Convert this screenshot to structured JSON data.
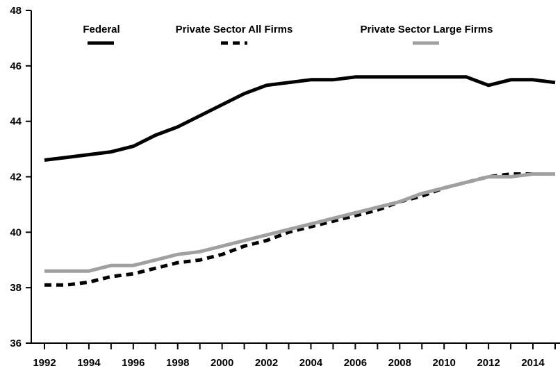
{
  "chart_data": {
    "type": "line",
    "title": "",
    "xlabel": "",
    "ylabel": "",
    "xlim": [
      1992,
      2015
    ],
    "ylim": [
      36,
      48
    ],
    "yticks": [
      36,
      38,
      40,
      42,
      44,
      46,
      48
    ],
    "xtick_labels": [
      "1992",
      "1994",
      "1996",
      "1998",
      "2000",
      "2002",
      "2004",
      "2006",
      "2008",
      "2010",
      "2012",
      "2014"
    ],
    "grid": false,
    "legend_placement": "top",
    "x": [
      1992,
      1993,
      1994,
      1995,
      1996,
      1997,
      1998,
      1999,
      2000,
      2001,
      2002,
      2003,
      2004,
      2005,
      2006,
      2007,
      2008,
      2009,
      2010,
      2011,
      2012,
      2013,
      2014,
      2015
    ],
    "series": [
      {
        "name": "Federal",
        "color": "#000000",
        "style": "solid",
        "values": [
          42.6,
          42.7,
          42.8,
          42.9,
          43.1,
          43.5,
          43.8,
          44.2,
          44.6,
          45.0,
          45.3,
          45.4,
          45.5,
          45.5,
          45.6,
          45.6,
          45.6,
          45.6,
          45.6,
          45.6,
          45.3,
          45.5,
          45.5,
          45.4
        ]
      },
      {
        "name": "Private Sector All Firms",
        "color": "#000000",
        "style": "dashed",
        "values": [
          38.1,
          38.1,
          38.2,
          38.4,
          38.5,
          38.7,
          38.9,
          39.0,
          39.2,
          39.5,
          39.7,
          40.0,
          40.2,
          40.4,
          40.6,
          40.8,
          41.1,
          41.3,
          41.6,
          41.8,
          42.0,
          42.1,
          42.1,
          42.1
        ]
      },
      {
        "name": "Private Sector Large Firms",
        "color": "#a0a0a0",
        "style": "solid",
        "values": [
          38.6,
          38.6,
          38.6,
          38.8,
          38.8,
          39.0,
          39.2,
          39.3,
          39.5,
          39.7,
          39.9,
          40.1,
          40.3,
          40.5,
          40.7,
          40.9,
          41.1,
          41.4,
          41.6,
          41.8,
          42.0,
          42.0,
          42.1,
          42.1
        ]
      }
    ]
  }
}
